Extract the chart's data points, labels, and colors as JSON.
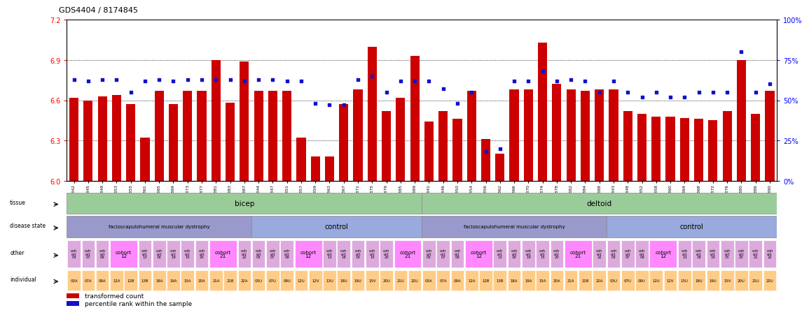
{
  "title": "GDS4404 / 8174845",
  "sample_ids": [
    "GSM892342",
    "GSM892345",
    "GSM892349",
    "GSM892353",
    "GSM892355",
    "GSM892361",
    "GSM892365",
    "GSM892369",
    "GSM892373",
    "GSM892377",
    "GSM892381",
    "GSM892383",
    "GSM892387",
    "GSM892344",
    "GSM892347",
    "GSM892351",
    "GSM892357",
    "GSM892359",
    "GSM892363",
    "GSM892367",
    "GSM892371",
    "GSM892375",
    "GSM892379",
    "GSM892385",
    "GSM892389",
    "GSM892341",
    "GSM892346",
    "GSM892350",
    "GSM892354",
    "GSM892356",
    "GSM892362",
    "GSM892366",
    "GSM892370",
    "GSM892374",
    "GSM892378",
    "GSM892382",
    "GSM892384",
    "GSM892388",
    "GSM892343",
    "GSM892348",
    "GSM892352",
    "GSM892358",
    "GSM892360",
    "GSM892364",
    "GSM892368",
    "GSM892372",
    "GSM892376",
    "GSM892380",
    "GSM892386",
    "GSM892390"
  ],
  "bar_values": [
    6.62,
    6.6,
    6.63,
    6.64,
    6.57,
    6.32,
    6.67,
    6.57,
    6.67,
    6.67,
    6.9,
    6.58,
    6.89,
    6.67,
    6.67,
    6.67,
    6.32,
    6.18,
    6.18,
    6.57,
    6.68,
    7.0,
    6.52,
    6.62,
    6.93,
    6.44,
    6.52,
    6.46,
    6.67,
    6.31,
    6.2,
    6.68,
    6.68,
    7.03,
    6.72,
    6.68,
    6.67,
    6.68,
    6.68,
    6.52,
    6.5,
    6.48,
    6.48,
    6.47,
    6.46,
    6.45,
    6.52,
    6.9,
    6.5,
    6.67
  ],
  "percentile_values": [
    63,
    62,
    63,
    63,
    55,
    62,
    63,
    62,
    63,
    63,
    63,
    63,
    62,
    63,
    63,
    62,
    62,
    48,
    47,
    47,
    63,
    65,
    55,
    62,
    62,
    62,
    57,
    48,
    55,
    18,
    20,
    62,
    62,
    68,
    62,
    63,
    62,
    55,
    62,
    55,
    52,
    55,
    52,
    52,
    55,
    55,
    55,
    80,
    55,
    60
  ],
  "ylim_left": [
    6.0,
    7.2
  ],
  "ylim_right": [
    0,
    100
  ],
  "yticks_left": [
    6.0,
    6.3,
    6.6,
    6.9,
    7.2
  ],
  "yticks_right": [
    0,
    25,
    50,
    75,
    100
  ],
  "bar_color": "#cc0000",
  "dot_color": "#1111cc",
  "background_color": "#ffffff",
  "tissue_bicep_color": "#99cc99",
  "tissue_deltoid_color": "#99cc99",
  "disease_fshd_color": "#9999cc",
  "disease_control_color": "#99aadd",
  "cohort_plain_color": "#ddaadd",
  "cohort_highlight_color": "#ff88ff",
  "individual_color": "#ffcc88",
  "row_labels": [
    "tissue",
    "disease state",
    "other",
    "individual"
  ]
}
